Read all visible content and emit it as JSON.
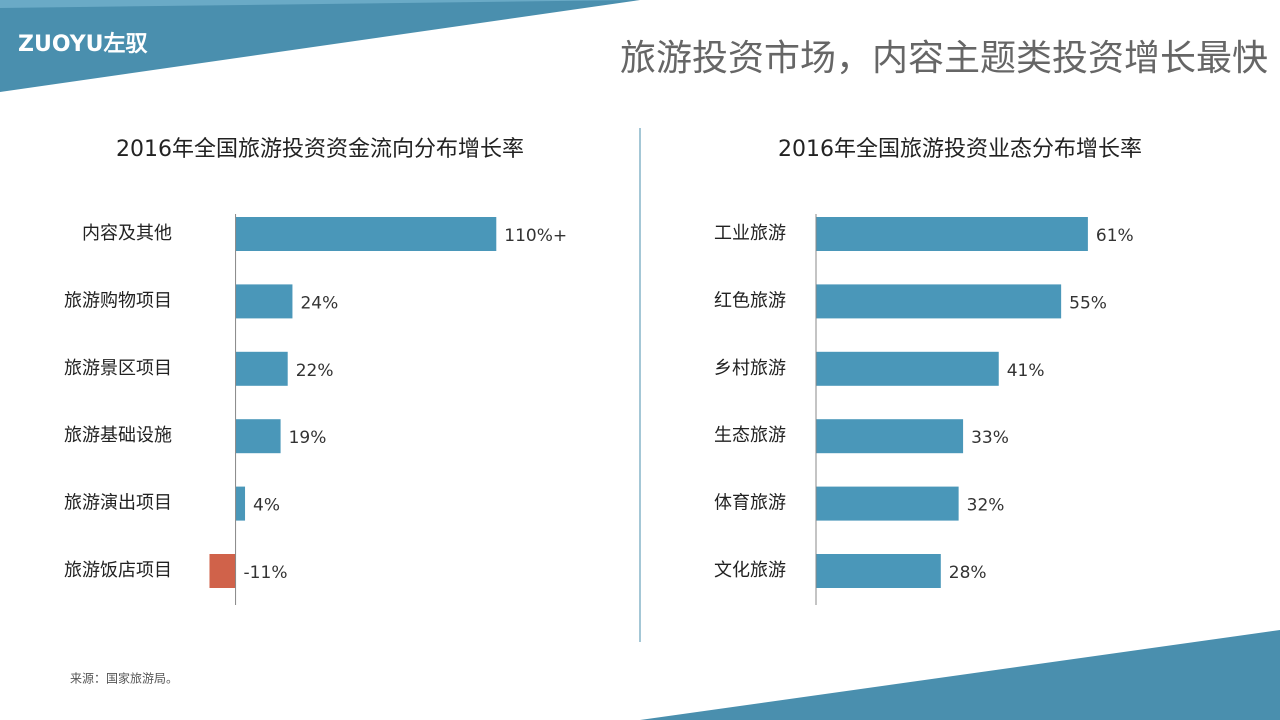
{
  "header": {
    "logo": "ZUOYU左驭",
    "title": "旅游投资市场，内容主题类投资增长最快"
  },
  "chart_data": [
    {
      "type": "bar",
      "orientation": "horizontal",
      "title": "2016年全国旅游投资资金流向分布增长率",
      "categories": [
        "内容及其他",
        "旅游购物项目",
        "旅游景区项目",
        "旅游基础设施",
        "旅游演出项目",
        "旅游饭店项目"
      ],
      "values": [
        110,
        24,
        22,
        19,
        4,
        -11
      ],
      "value_labels": [
        "110%+",
        "24%",
        "22%",
        "19%",
        "4%",
        "-11%"
      ],
      "color": "#4a97b9",
      "negative_color": "#d0624a",
      "xlim": [
        -15,
        120
      ]
    },
    {
      "type": "bar",
      "orientation": "horizontal",
      "title": "2016年全国旅游投资业态分布增长率",
      "categories": [
        "工业旅游",
        "红色旅游",
        "乡村旅游",
        "生态旅游",
        "体育旅游",
        "文化旅游"
      ],
      "values": [
        61,
        55,
        41,
        33,
        32,
        28
      ],
      "value_labels": [
        "61%",
        "55%",
        "41%",
        "33%",
        "32%",
        "28%"
      ],
      "color": "#4a97b9",
      "negative_color": "#d0624a",
      "xlim": [
        0,
        70
      ]
    }
  ],
  "source": "来源：国家旅游局。"
}
